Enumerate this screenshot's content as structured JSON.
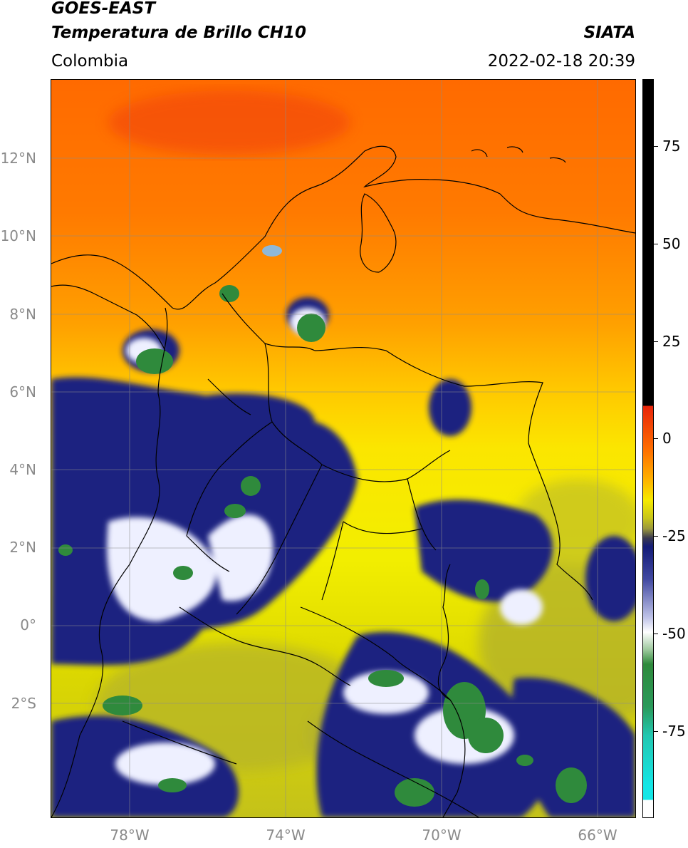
{
  "header": {
    "title_line1": "GOES-EAST",
    "title_line2": "Temperatura de Brillo CH10",
    "brand": "SIATA",
    "region": "Colombia",
    "datetime": "2022-02-18 20:39"
  },
  "map": {
    "lat_labels": [
      {
        "text": "12°N",
        "lat": 12
      },
      {
        "text": "10°N",
        "lat": 10
      },
      {
        "text": "8°N",
        "lat": 8
      },
      {
        "text": "6°N",
        "lat": 6
      },
      {
        "text": "4°N",
        "lat": 4
      },
      {
        "text": "2°N",
        "lat": 2
      },
      {
        "text": "0°",
        "lat": 0
      },
      {
        "text": "2°S",
        "lat": -2
      }
    ],
    "lon_labels": [
      {
        "text": "78°W",
        "lon": -78
      },
      {
        "text": "74°W",
        "lon": -74
      },
      {
        "text": "70°W",
        "lon": -70
      },
      {
        "text": "66°W",
        "lon": -66
      }
    ],
    "extent": {
      "lon_min": -80,
      "lon_max": -65,
      "lat_min": -5,
      "lat_max": 14
    },
    "gridlines": true
  },
  "colorbar": {
    "labels": [
      {
        "text": "75",
        "value": 75
      },
      {
        "text": "50",
        "value": 50
      },
      {
        "text": "25",
        "value": 25
      },
      {
        "text": "0",
        "value": 0
      },
      {
        "text": "-25",
        "value": -25
      },
      {
        "text": "-50",
        "value": -50
      },
      {
        "text": "-75",
        "value": -75
      }
    ],
    "range": [
      -95,
      90
    ],
    "colors": {
      "above_10": "#000000",
      "warm_red": "#e8250a",
      "orange": "#ff8a00",
      "yellow": "#f6ea00",
      "olive": "#a6a43a",
      "navy": "#141c78",
      "white": "#ffffff",
      "green": "#2f8a3c",
      "teal": "#22c7b0",
      "cyan": "#14e6e6"
    }
  }
}
